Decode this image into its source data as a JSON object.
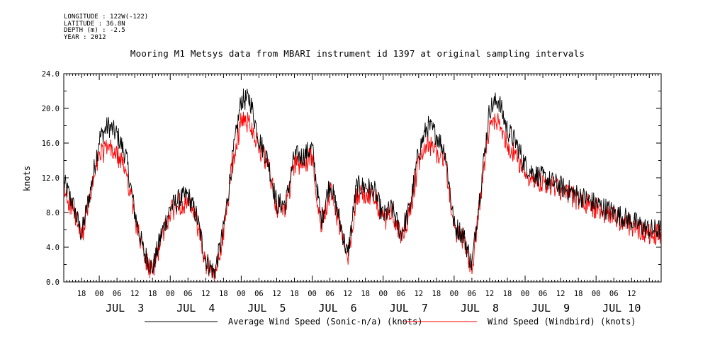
{
  "meta": {
    "longitude": "LONGITUDE : 122W(-122)",
    "latitude": "LATITUDE : 36.8N",
    "depth": "DEPTH (m) : -2.5",
    "year": "YEAR : 2012"
  },
  "chart_data": {
    "type": "line",
    "title": "Mooring M1 Metsys data from MBARI instrument id 1397 at original sampling intervals",
    "ylabel": "knots",
    "xlabel": "",
    "ylim": [
      0,
      24
    ],
    "y_ticks": [
      "0.0",
      "4.0",
      "8.0",
      "12.0",
      "16.0",
      "20.0",
      "24.0"
    ],
    "x_hour_labels": [
      "18",
      "00",
      "06",
      "12",
      "18",
      "00",
      "06",
      "12",
      "18",
      "00",
      "06",
      "12",
      "18",
      "00",
      "06",
      "12",
      "18",
      "00",
      "06",
      "12",
      "18",
      "00",
      "06",
      "12",
      "18",
      "00",
      "06",
      "12",
      "18",
      "00",
      "06",
      "12"
    ],
    "x_day_labels": [
      "JUL  3",
      "JUL  4",
      "JUL  5",
      "JUL  6",
      "JUL  7",
      "JUL  8",
      "JUL  9",
      "JUL 10"
    ],
    "x_units": "hours since JUL 2 12:00, 2012",
    "xlim": [
      0,
      202
    ],
    "grid": false,
    "legend_position": "bottom",
    "series": [
      {
        "name": "Average Wind Speed (Sonic-n/a) (knots)",
        "color": "#000000",
        "x": [
          0,
          3,
          6,
          9,
          12,
          15,
          18,
          21,
          24,
          27,
          30,
          33,
          36,
          39,
          42,
          45,
          48,
          51,
          54,
          57,
          60,
          63,
          66,
          69,
          72,
          75,
          78,
          81,
          84,
          87,
          90,
          93,
          96,
          99,
          102,
          105,
          108,
          111,
          114,
          117,
          120,
          123,
          126,
          129,
          132,
          135,
          138,
          141,
          144,
          147,
          150,
          153,
          156,
          159,
          162,
          165,
          168,
          171,
          174,
          177,
          180,
          183,
          186,
          189,
          192,
          195,
          198,
          201
        ],
        "values": [
          11.5,
          9,
          5.5,
          10.5,
          16.5,
          18,
          17,
          14.5,
          8,
          3.5,
          1.5,
          5.5,
          8.5,
          9.5,
          10,
          7.5,
          2.5,
          1,
          6,
          14,
          21,
          21,
          16.5,
          14,
          9,
          9,
          14.5,
          14.5,
          15.5,
          7,
          11.5,
          7.5,
          3,
          11,
          11,
          10.5,
          7.5,
          8.5,
          5.5,
          8.5,
          15,
          18,
          17,
          15,
          6.5,
          5.5,
          2,
          11,
          20,
          21,
          17.5,
          16,
          13.5,
          12.5,
          12,
          11.5,
          11,
          10.5,
          10,
          9.5,
          9,
          8.5,
          8,
          7.5,
          7,
          6.5,
          6,
          6
        ]
      },
      {
        "name": "Wind Speed (Windbird) (knots)",
        "color": "#ff0000",
        "x": [
          0,
          3,
          6,
          9,
          12,
          15,
          18,
          21,
          24,
          27,
          30,
          33,
          36,
          39,
          42,
          45,
          48,
          51,
          54,
          57,
          60,
          63,
          66,
          69,
          72,
          75,
          78,
          81,
          84,
          87,
          90,
          93,
          96,
          99,
          102,
          105,
          108,
          111,
          114,
          117,
          120,
          123,
          126,
          129,
          132,
          135,
          138,
          141,
          144,
          147,
          150,
          153,
          156,
          159,
          162,
          165,
          168,
          171,
          174,
          177,
          180,
          183,
          186,
          189,
          192,
          195,
          198,
          201
        ],
        "values": [
          10.5,
          8.5,
          5,
          10,
          14.5,
          15.5,
          14.5,
          13,
          7.5,
          3,
          1,
          5,
          8,
          9,
          9,
          7,
          2,
          0.5,
          5.5,
          13.5,
          18.5,
          18.5,
          15.5,
          13.5,
          8.5,
          8.5,
          13.5,
          13.5,
          14.5,
          6.5,
          10.5,
          7,
          2.5,
          10,
          10,
          10,
          7,
          8,
          5,
          8,
          13.5,
          16,
          15,
          14,
          6,
          5,
          1.5,
          10,
          18,
          18.5,
          16,
          14.5,
          12.5,
          12,
          11.5,
          11,
          10.5,
          10,
          9.5,
          9,
          8.5,
          8,
          7.5,
          7,
          6.5,
          6,
          5.5,
          5.5
        ]
      }
    ]
  }
}
